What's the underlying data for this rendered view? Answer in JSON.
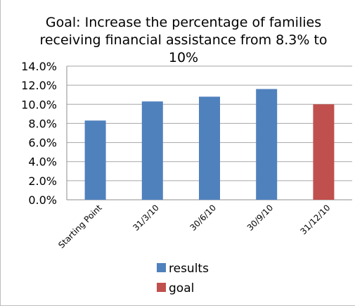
{
  "chart_data": {
    "type": "bar",
    "title": "Goal: Increase the percentage of families receiving financial assistance from 8.3% to 10%",
    "categories": [
      "Starting Point",
      "31/3/10",
      "30/6/10",
      "30/9/10",
      "31/12/10"
    ],
    "series": [
      {
        "name": "results",
        "color": "#4f81bd",
        "values": [
          8.3,
          10.3,
          10.8,
          11.6,
          null
        ]
      },
      {
        "name": "goal",
        "color": "#c0504d",
        "values": [
          null,
          null,
          null,
          null,
          10.0
        ]
      }
    ],
    "yticks": [
      "0.0%",
      "2.0%",
      "4.0%",
      "6.0%",
      "8.0%",
      "10.0%",
      "12.0%",
      "14.0%"
    ],
    "ylim": [
      0,
      14
    ],
    "grid": true,
    "legend": "bottom"
  }
}
